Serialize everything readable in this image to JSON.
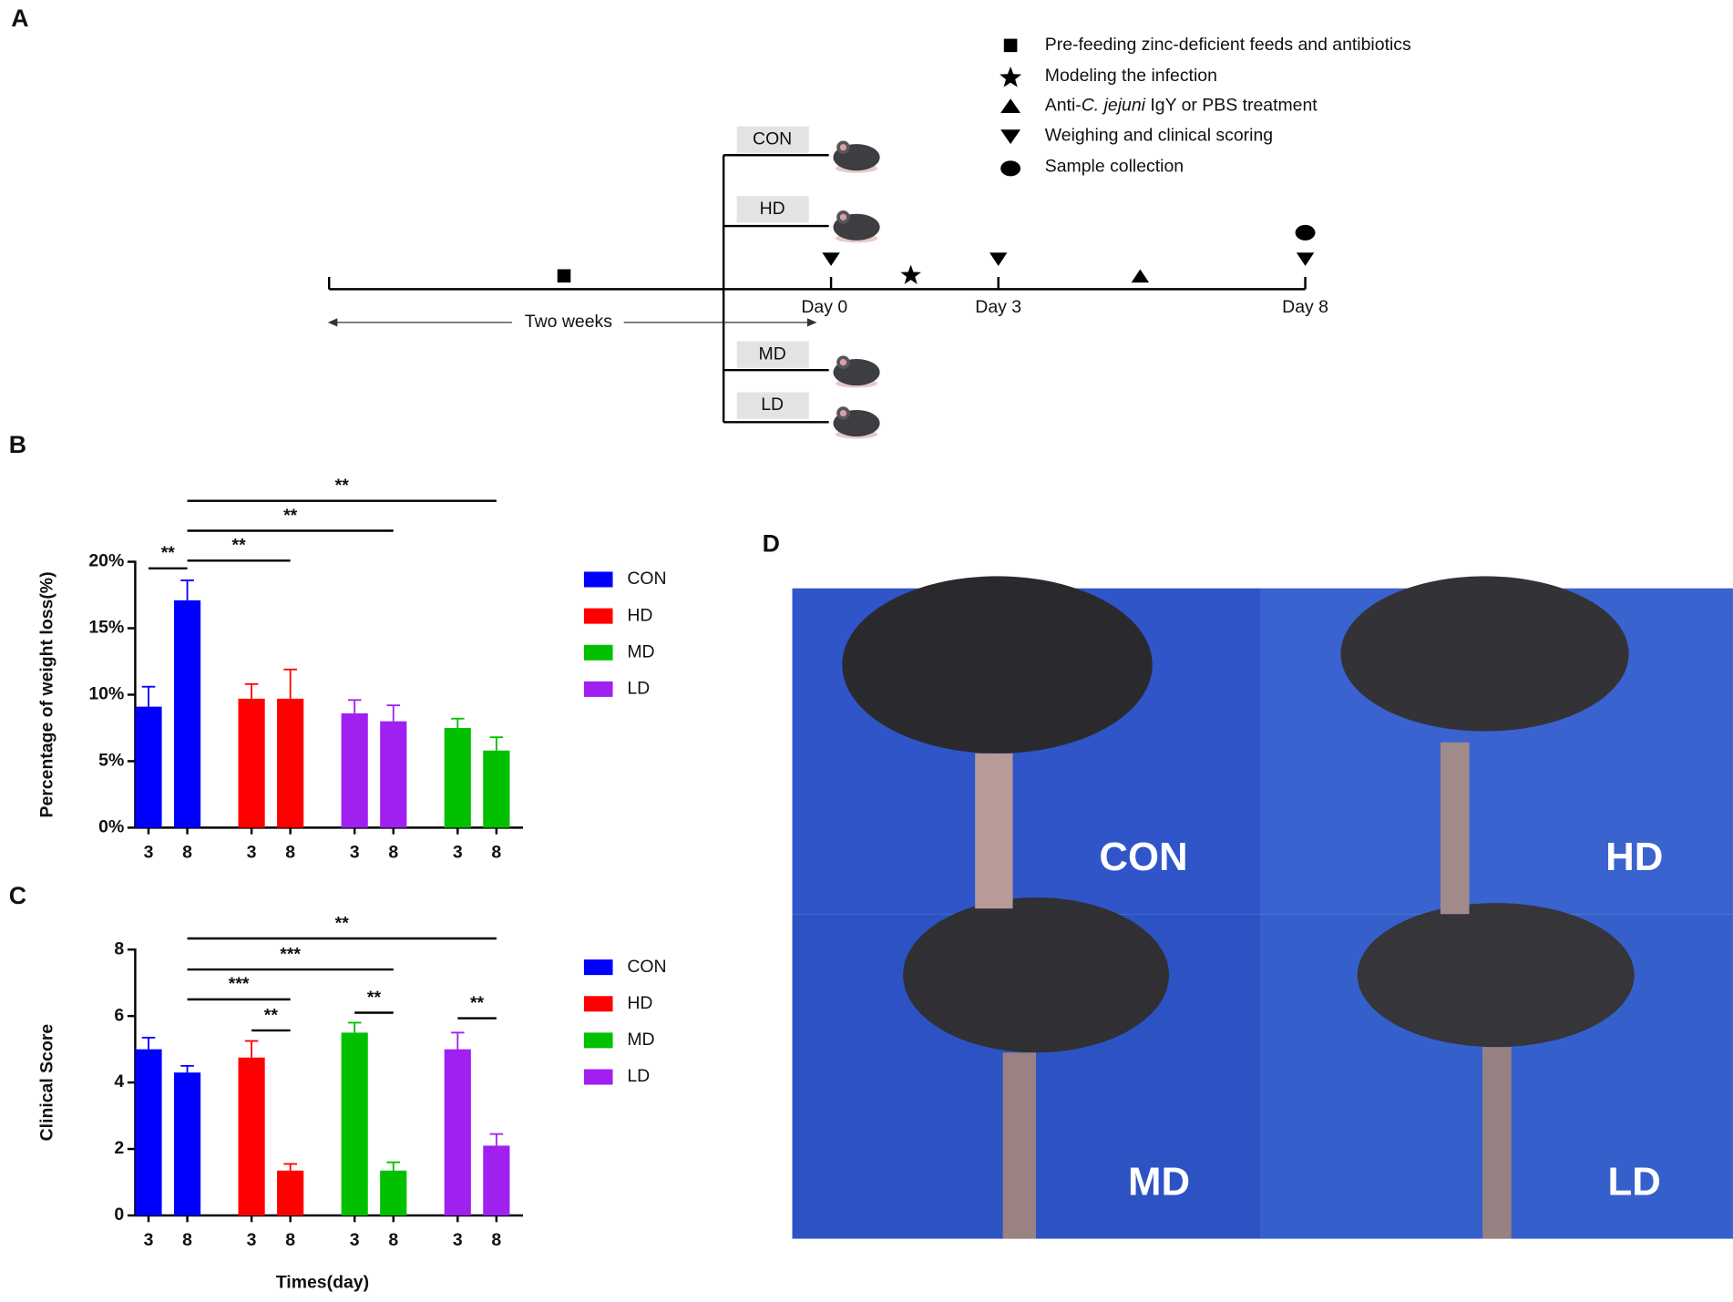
{
  "panel_labels": [
    "A",
    "B",
    "C",
    "D"
  ],
  "timeline": {
    "legend": [
      {
        "symbol": "square",
        "parts": [
          "Pre-feeding zinc-deficient feeds and antibiotics"
        ]
      },
      {
        "symbol": "star",
        "parts": [
          "Modeling the infection"
        ]
      },
      {
        "symbol": "triangle-up",
        "parts": [
          "Anti-",
          "C. jejuni",
          " IgY or PBS treatment"
        ]
      },
      {
        "symbol": "triangle-down",
        "parts": [
          "Weighing and clinical scoring"
        ]
      },
      {
        "symbol": "ellipse",
        "parts": [
          "Sample collection"
        ]
      }
    ],
    "groups": [
      "CON",
      "HD",
      "MD",
      "LD"
    ],
    "days": [
      "Day 0",
      "Day 3",
      "Day 8"
    ],
    "duration": "Two weeks"
  },
  "chart_data": [
    {
      "type": "bar",
      "ylabel": "Percentage of weight loss(%)",
      "categories": [
        "3",
        "8"
      ],
      "series": [
        {
          "name": "CON",
          "color": "#0000ff",
          "values": [
            9.1,
            17.1
          ],
          "errors": [
            1.5,
            1.5
          ]
        },
        {
          "name": "HD",
          "color": "#ff0000",
          "values": [
            9.7,
            9.7
          ],
          "errors": [
            1.1,
            2.2
          ]
        },
        {
          "name": "MD",
          "color": "#00c000",
          "values": [
            7.5,
            5.8
          ],
          "errors": [
            0.7,
            1.0
          ]
        },
        {
          "name": "LD",
          "color": "#a020f0",
          "values": [
            8.6,
            8.0
          ],
          "errors": [
            1.0,
            1.2
          ]
        }
      ],
      "bar_order": [
        0,
        1,
        3,
        2
      ],
      "ylim": [
        0,
        20
      ],
      "yticks": [
        {
          "value": 0,
          "label": "0%"
        },
        {
          "value": 5,
          "label": "5%"
        },
        {
          "value": 10,
          "label": "10%"
        },
        {
          "value": 15,
          "label": "15%"
        },
        {
          "value": 20,
          "label": "20%"
        }
      ],
      "annotations": [
        {
          "text": "**",
          "from": [
            0,
            0
          ],
          "to": [
            0,
            1
          ]
        },
        {
          "text": "**",
          "from": [
            0,
            1
          ],
          "to": [
            1,
            1
          ]
        },
        {
          "text": "**",
          "from": [
            0,
            1
          ],
          "to": [
            3,
            1
          ]
        },
        {
          "text": "**",
          "from": [
            0,
            1
          ],
          "to": [
            2,
            1
          ]
        }
      ]
    },
    {
      "type": "bar",
      "ylabel": "Clinical Score",
      "xlabel": "Times(day)",
      "categories": [
        "3",
        "8"
      ],
      "series": [
        {
          "name": "CON",
          "color": "#0000ff",
          "values": [
            5.0,
            4.3
          ],
          "errors": [
            0.35,
            0.2
          ]
        },
        {
          "name": "HD",
          "color": "#ff0000",
          "values": [
            4.75,
            1.35
          ],
          "errors": [
            0.5,
            0.2
          ]
        },
        {
          "name": "MD",
          "color": "#00c000",
          "values": [
            5.5,
            1.35
          ],
          "errors": [
            0.3,
            0.25
          ]
        },
        {
          "name": "LD",
          "color": "#a020f0",
          "values": [
            5.0,
            2.1
          ],
          "errors": [
            0.5,
            0.35
          ]
        }
      ],
      "bar_order": [
        0,
        1,
        2,
        3
      ],
      "ylim": [
        0,
        8
      ],
      "yticks": [
        0,
        2,
        4,
        6,
        8
      ],
      "annotations": [
        {
          "text": "**",
          "from": [
            0,
            1
          ],
          "to": [
            3,
            1
          ]
        },
        {
          "text": "***",
          "from": [
            0,
            1
          ],
          "to": [
            2,
            1
          ]
        },
        {
          "text": "***",
          "from": [
            0,
            1
          ],
          "to": [
            1,
            1
          ]
        },
        {
          "text": "**",
          "from": [
            1,
            0
          ],
          "to": [
            1,
            1
          ]
        },
        {
          "text": "**",
          "from": [
            2,
            0
          ],
          "to": [
            2,
            1
          ]
        },
        {
          "text": "**",
          "from": [
            3,
            0
          ],
          "to": [
            3,
            1
          ]
        }
      ]
    }
  ],
  "photos": {
    "labels": [
      "CON",
      "HD",
      "MD",
      "LD"
    ]
  }
}
